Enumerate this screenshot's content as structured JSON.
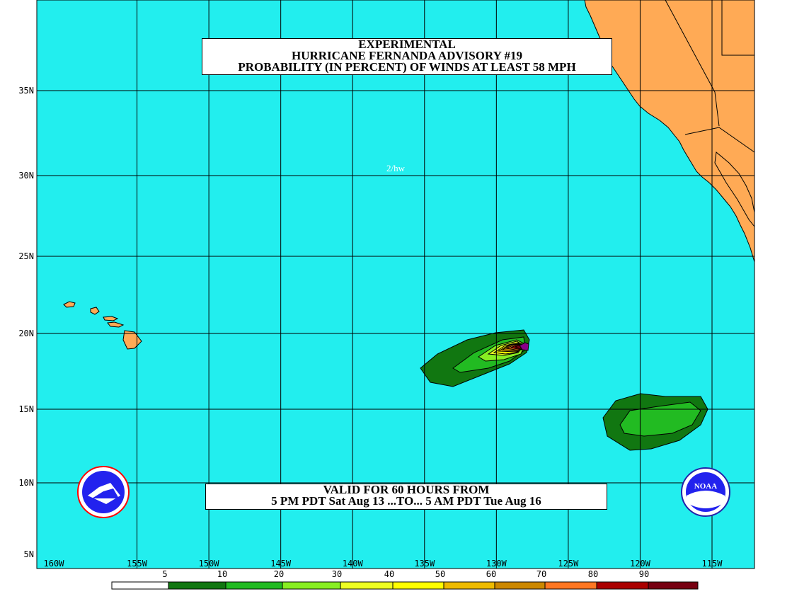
{
  "title": {
    "line1": "EXPERIMENTAL",
    "line2": "HURRICANE FERNANDA ADVISORY #19",
    "line3": "PROBABILITY (IN PERCENT) OF WINDS AT LEAST 58 MPH"
  },
  "valid": {
    "line1": "VALID FOR 60 HOURS FROM",
    "line2": "5 PM PDT Sat Aug 13 ...TO... 5 AM PDT Tue Aug 16"
  },
  "annotation": "2/hw",
  "colors": {
    "ocean": "#22eeee",
    "land": "#ffaa55",
    "grid": "#000000"
  },
  "map": {
    "lon_min": -160,
    "lon_max": -110,
    "lat_min": 5,
    "lat_max": 40,
    "lat_ticks": [
      {
        "value": 35,
        "label": "35N"
      },
      {
        "value": 30,
        "label": "30N"
      },
      {
        "value": 25,
        "label": "25N"
      },
      {
        "value": 20,
        "label": "20N"
      },
      {
        "value": 15,
        "label": "15N"
      },
      {
        "value": 10,
        "label": "10N"
      },
      {
        "value": 5,
        "label": "5N"
      }
    ],
    "lon_ticks": [
      {
        "value": -160,
        "label": "160W"
      },
      {
        "value": -155,
        "label": "155W"
      },
      {
        "value": -150,
        "label": "150W"
      },
      {
        "value": -145,
        "label": "145W"
      },
      {
        "value": -140,
        "label": "140W"
      },
      {
        "value": -135,
        "label": "135W"
      },
      {
        "value": -130,
        "label": "130W"
      },
      {
        "value": -125,
        "label": "125W"
      },
      {
        "value": -120,
        "label": "120W"
      },
      {
        "value": -115,
        "label": "115W"
      }
    ]
  },
  "legend": {
    "labels": [
      "5",
      "10",
      "20",
      "30",
      "40",
      "50",
      "60",
      "70",
      "80",
      "90"
    ],
    "colors": [
      "#ffffff",
      "#117711",
      "#22bb22",
      "#88ee22",
      "#eeff22",
      "#ffff00",
      "#eebb00",
      "#cc8800",
      "#ff7722",
      "#aa0000",
      "#770011",
      "#880088"
    ]
  },
  "logos": {
    "left": "NATIONAL WEATHER SERVICE",
    "right": "NOAA"
  }
}
